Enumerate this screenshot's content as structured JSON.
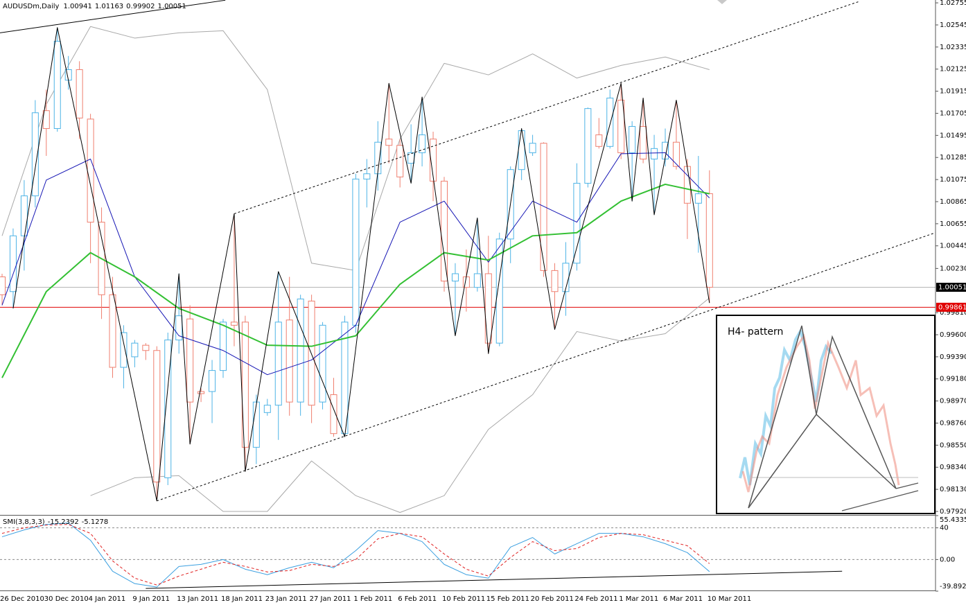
{
  "chart_data": [
    {
      "type": "candlestick",
      "title": "AUDUSDm,Daily",
      "categories": [
        "26 Dec 2010",
        null,
        null,
        null,
        "30 Dec 2010",
        null,
        null,
        null,
        "4 Jan 2011",
        null,
        null,
        null,
        "9 Jan 2011",
        null,
        null,
        null,
        "13 Jan 2011",
        null,
        null,
        null,
        "18 Jan 2011",
        null,
        null,
        null,
        "23 Jan 2011",
        null,
        null,
        null,
        "27 Jan 2011",
        null,
        null,
        null,
        "1 Feb 2011",
        null,
        null,
        null,
        "6 Feb 2011",
        null,
        null,
        null,
        "10 Feb 2011",
        null,
        null,
        null,
        "15 Feb 2011",
        null,
        null,
        null,
        "20 Feb 2011",
        null,
        null,
        null,
        "24 Feb 2011",
        null,
        null,
        null,
        "1 Mar 2011",
        null,
        null,
        null,
        "6 Mar 2011",
        null,
        null,
        null,
        "10 Mar 2011"
      ],
      "open": [
        1.0015,
        1.0001,
        1.0054,
        1.0092,
        1.0173,
        1.0156,
        1.0202,
        1.0212,
        1.0165,
        1.0067,
        0.9998,
        0.9929,
        0.9939,
        0.995,
        0.9945,
        0.9824,
        0.9955,
        0.9975,
        0.9906,
        0.9906,
        0.9926,
        0.9972,
        0.9972,
        0.9853,
        0.9886,
        0.9893,
        0.9974,
        0.9896,
        0.9992,
        0.9896,
        0.9903,
        0.9866,
        0.9969,
        1.0108,
        1.0113,
        1.0146,
        1.014,
        1.0123,
        1.0133,
        1.0146,
        1.0106,
        1.0011,
        1.0015,
        1.0005,
        1.0018,
        0.9952,
        1.0051,
        1.0117,
        1.0133,
        1.0142,
        1.0021,
        1.0001,
        1.0028,
        1.0104,
        1.015,
        1.0139,
        1.0183,
        1.0133,
        1.0158,
        1.0127,
        1.0127,
        1.0143,
        1.012,
        1.0085,
        1.00941
      ],
      "high": [
        1.0018,
        1.0061,
        1.0107,
        1.0183,
        1.0193,
        1.0252,
        1.0225,
        1.022,
        1.017,
        1.0081,
        1.0015,
        0.9969,
        0.9955,
        0.9952,
        0.9949,
        0.9962,
        1.0018,
        0.9988,
        0.9909,
        0.9936,
        0.9975,
        1.0075,
        0.9978,
        0.9903,
        0.9899,
        1.002,
        1.0015,
        0.9998,
        0.9998,
        0.9972,
        0.9919,
        0.9978,
        1.0113,
        1.0127,
        1.0163,
        1.0199,
        1.0146,
        1.016,
        1.0186,
        1.0153,
        1.011,
        1.0028,
        1.0041,
        1.0071,
        1.0054,
        1.0057,
        1.012,
        1.0156,
        1.015,
        1.0143,
        1.0028,
        1.0048,
        1.0123,
        1.0176,
        1.0166,
        1.0193,
        1.0199,
        1.0163,
        1.0185,
        1.015,
        1.0156,
        1.0183,
        1.0127,
        1.013,
        1.01163
      ],
      "low": [
        0.9988,
        0.9985,
        1.0021,
        1.0081,
        1.013,
        1.0153,
        1.0193,
        1.0146,
        1.0028,
        0.9975,
        0.9919,
        0.9909,
        0.9929,
        0.9936,
        0.9802,
        0.9817,
        0.9942,
        0.9856,
        0.9896,
        0.9876,
        0.9919,
        0.9949,
        0.983,
        0.9837,
        0.9883,
        0.986,
        0.9883,
        0.9883,
        0.9876,
        0.9889,
        0.9863,
        0.9863,
        0.9962,
        1.0081,
        1.0097,
        1.0123,
        1.01,
        1.0104,
        1.012,
        1.0087,
        1.0001,
        0.9959,
        0.9982,
        1.0001,
        0.9942,
        0.9949,
        1.0028,
        1.0107,
        1.013,
        1.0015,
        0.9965,
        0.9978,
        1.0021,
        1.01,
        1.0137,
        1.0137,
        1.0127,
        1.0087,
        1.0123,
        1.0074,
        1.012,
        1.0117,
        1.0051,
        1.0038,
        0.99902
      ],
      "close": [
        0.9998,
        1.0054,
        1.0092,
        1.0171,
        1.0156,
        1.0239,
        1.0212,
        1.0166,
        1.0067,
        0.9998,
        0.9929,
        0.9962,
        0.9952,
        0.9945,
        0.982,
        0.9955,
        0.9978,
        0.9896,
        0.9904,
        0.9926,
        0.9972,
        0.9969,
        0.9853,
        0.9896,
        0.9893,
        0.9972,
        0.9896,
        0.9994,
        0.9893,
        0.9969,
        0.9866,
        0.9972,
        1.0108,
        1.0113,
        1.0143,
        1.014,
        1.011,
        1.0133,
        1.015,
        1.0106,
        1.0011,
        1.0018,
        1.0005,
        1.0018,
        0.9952,
        1.0051,
        1.0117,
        1.0154,
        1.0142,
        1.0021,
        1.0001,
        1.0028,
        1.0104,
        1.0175,
        1.0139,
        1.0185,
        1.0133,
        1.0158,
        1.0127,
        1.0137,
        1.0143,
        1.012,
        1.0085,
        1.0094,
        1.00051
      ],
      "up_color": "#4db3e6",
      "down_color": "#ef7f6f",
      "ylim": [
        0.97887,
        1.02782
      ],
      "yticks": [
        1.02755,
        1.02545,
        1.02335,
        1.02125,
        1.01915,
        1.01705,
        1.01495,
        1.01285,
        1.01075,
        1.00865,
        1.00655,
        1.00445,
        {
          "value": 1.0023,
          "label": "1.00230"
        },
        {
          "value": 0.9981,
          "label": "0.99810"
        },
        {
          "value": 0.996,
          "label": "0.99600"
        },
        {
          "value": 0.9939,
          "label": "0.99390"
        },
        {
          "value": 0.9918,
          "label": "0.99180"
        },
        {
          "value": 0.9897,
          "label": "0.98970"
        },
        {
          "value": 0.9876,
          "label": "0.98760"
        },
        {
          "value": 0.9855,
          "label": "0.98550"
        },
        {
          "value": 0.9834,
          "label": "0.98340"
        },
        {
          "value": 0.9813,
          "label": "0.98130"
        },
        {
          "value": 0.9792,
          "label": "0.97920"
        }
      ],
      "grid": false,
      "overlays": [
        {
          "color": "#a8a8a8",
          "x": [
            0,
            4,
            8,
            12,
            16,
            20,
            24,
            28,
            32,
            36,
            40,
            44,
            48,
            52,
            56,
            60,
            64
          ],
          "values": [
            1.0054,
            1.0179,
            1.0253,
            1.0242,
            1.0247,
            1.0249,
            1.0193,
            1.0028,
            1.0021,
            1.0146,
            1.0218,
            1.0207,
            1.0227,
            1.0204,
            1.0216,
            1.0224,
            1.0212
          ]
        },
        {
          "color": "#a8a8a8",
          "x": [
            0,
            4,
            8,
            12,
            16,
            20,
            24,
            28,
            32,
            36,
            40,
            44,
            48,
            52,
            56,
            60,
            64
          ],
          "values": [
            null,
            null,
            0.9807,
            0.9824,
            0.9826,
            0.9792,
            0.9792,
            0.984,
            0.9807,
            0.9791,
            0.9807,
            0.987,
            0.9903,
            0.9963,
            0.9954,
            0.9961,
            0.9995
          ]
        },
        {
          "color": "#1414b4",
          "x": [
            0,
            4,
            8,
            12,
            16,
            20,
            24,
            28,
            32,
            36,
            40,
            44,
            48,
            52,
            56,
            60,
            64
          ],
          "values": [
            0.9988,
            1.0107,
            1.0127,
            1.0015,
            0.9959,
            0.9945,
            0.9922,
            0.9936,
            0.9969,
            1.0067,
            1.0087,
            1.0029,
            1.0087,
            1.0067,
            1.0132,
            1.0133,
            1.009
          ]
        },
        {
          "color": "#33c033",
          "x": [
            0,
            4,
            8,
            12,
            16,
            20,
            24,
            28,
            32,
            36,
            40,
            44,
            48,
            52,
            56,
            60,
            64
          ],
          "values": [
            0.9919,
            1.0001,
            1.0038,
            1.0015,
            0.9985,
            0.9969,
            0.995,
            0.9949,
            0.9959,
            1.0008,
            1.0038,
            1.0031,
            1.0054,
            1.0057,
            1.0087,
            1.0103,
            1.0094
          ]
        },
        {
          "color": "#000000",
          "x": [
            1,
            5,
            14,
            16,
            17,
            21,
            22,
            25,
            31,
            35,
            37,
            38,
            41,
            43,
            44,
            47,
            50,
            56,
            57,
            58,
            59,
            61,
            64
          ],
          "values": [
            0.9985,
            1.0252,
            0.9802,
            1.0018,
            0.9856,
            1.0075,
            0.983,
            1.002,
            0.9863,
            1.0199,
            1.0104,
            1.0186,
            0.9959,
            1.0071,
            0.9942,
            1.0156,
            0.9965,
            1.0199,
            1.0087,
            1.0185,
            1.0074,
            1.0183,
            0.99902
          ]
        }
      ],
      "trendlines": [
        {
          "color": "#000000",
          "dash": true,
          "x": [
            21,
            77.6
          ],
          "values": [
            1.0075,
            1.0277
          ]
        },
        {
          "color": "#000000",
          "dash": true,
          "x": [
            14,
            84.45
          ],
          "values": [
            0.9802,
            1.0057
          ]
        },
        {
          "color": "#000000",
          "dash": false,
          "x": [
            -0.19,
            20.2
          ],
          "values": [
            1.0247,
            1.0278
          ]
        }
      ],
      "price_lines": [
        {
          "value": 1.00051,
          "color": "#b4b4b4",
          "box": "#000000"
        },
        {
          "value": 0.99861,
          "color": "#e00000",
          "box": "#e00000"
        }
      ]
    },
    {
      "type": "line",
      "title": "SMI(3,8,3,3)",
      "ylim": [
        -39.892,
        55.4335
      ],
      "yticks": [
        55.4335,
        40,
        {
          "value": 0,
          "label": "0.00"
        },
        -39.892
      ],
      "grid": true,
      "x": [
        0,
        2,
        4,
        6,
        8,
        10,
        12,
        14,
        16,
        18,
        20,
        22,
        24,
        26,
        28,
        30,
        32,
        34,
        36,
        38,
        40,
        42,
        44,
        46,
        48,
        50,
        52,
        54,
        56,
        58,
        60,
        62,
        64
      ],
      "series": [
        {
          "color": "#3a9fe0",
          "dash": false,
          "values": [
            28.7,
            37.4,
            44.3,
            46.1,
            24.3,
            -14.8,
            -30.4,
            -34.8,
            -8.7,
            -6.1,
            0,
            -12.2,
            -19.1,
            -10.4,
            -3.5,
            -10.4,
            11.3,
            36.5,
            33.0,
            22.6,
            -6.1,
            -19.1,
            -23.5,
            15.7,
            27.8,
            7.0,
            20.0,
            33.0,
            33.0,
            28.7,
            20.0,
            8.7,
            -15.2392
          ]
        },
        {
          "color": "#e02020",
          "dash": true,
          "values": [
            33,
            40,
            43.5,
            44.3,
            33,
            -1.7,
            -23.5,
            -32.2,
            -20.9,
            -12.2,
            -3.5,
            -8.7,
            -15.7,
            -13.9,
            -6.1,
            -8.7,
            0,
            26.1,
            33,
            28.7,
            7,
            -12.2,
            -20.9,
            2.6,
            22.6,
            11.3,
            13.9,
            27.8,
            33,
            31.3,
            24.3,
            17.4,
            -5.1278
          ]
        }
      ],
      "trendlines": [
        {
          "color": "#000000",
          "dash": false,
          "x": [
            13,
            76
          ],
          "values": [
            -36.5,
            -14.8
          ]
        }
      ]
    }
  ],
  "inset": {
    "title": "H4- pattern"
  }
}
